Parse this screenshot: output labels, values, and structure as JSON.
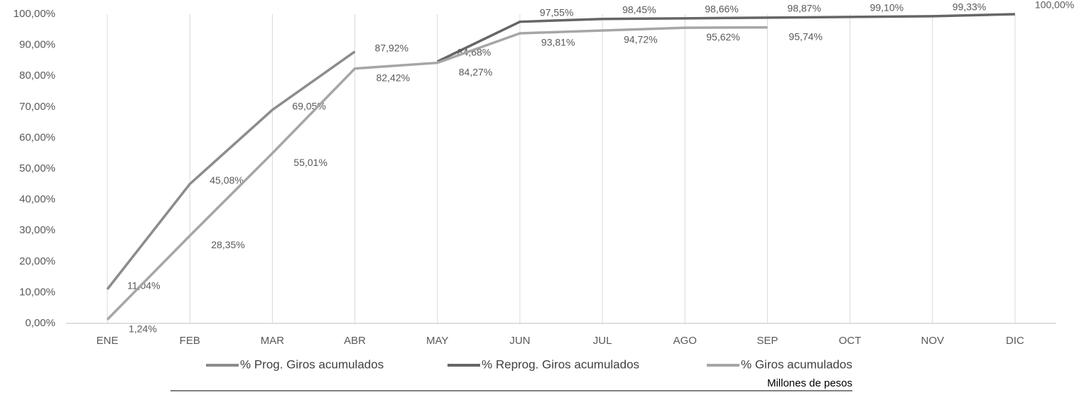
{
  "chart_data": {
    "type": "line",
    "categories": [
      "ENE",
      "FEB",
      "MAR",
      "ABR",
      "MAY",
      "JUN",
      "JUL",
      "AGO",
      "SEP",
      "OCT",
      "NOV",
      "DIC"
    ],
    "series": [
      {
        "name": "% Prog. Giros acumulados",
        "color": "#8c8c8c",
        "values": [
          11.04,
          45.08,
          69.05,
          87.92,
          null,
          null,
          null,
          null,
          null,
          null,
          null,
          null
        ],
        "value_labels": [
          "11,04%",
          "45,08%",
          "69,05%",
          "87,92%",
          null,
          null,
          null,
          null,
          null,
          null,
          null,
          null
        ]
      },
      {
        "name": "% Reprog. Giros acumulados",
        "color": "#666666",
        "values": [
          null,
          null,
          null,
          null,
          84.68,
          97.55,
          98.45,
          98.66,
          98.87,
          99.1,
          99.33,
          100
        ],
        "value_labels": [
          null,
          null,
          null,
          null,
          "84,68%",
          "97,55%",
          "98,45%",
          "98,66%",
          "98,87%",
          "99,10%",
          "99,33%",
          "100,00%"
        ]
      },
      {
        "name": "% Giros acumulados",
        "color": "#a6a6a6",
        "values": [
          1.24,
          28.35,
          55.01,
          82.42,
          84.27,
          93.81,
          94.72,
          95.62,
          95.74,
          null,
          null,
          null
        ],
        "value_labels": [
          "1,24%",
          "28,35%",
          "55,01%",
          "82,42%",
          "84,27%",
          "93,81%",
          "94,72%",
          "95,62%",
          "95,74%",
          null,
          null,
          null
        ]
      }
    ],
    "ylim": [
      0,
      100
    ],
    "yticks": [
      {
        "value": 0,
        "label": "0,00%"
      },
      {
        "value": 10,
        "label": "10,00%"
      },
      {
        "value": 20,
        "label": "20,00%"
      },
      {
        "value": 30,
        "label": "30,00%"
      },
      {
        "value": 40,
        "label": "40,00%"
      },
      {
        "value": 50,
        "label": "50,00%"
      },
      {
        "value": 60,
        "label": "60,00%"
      },
      {
        "value": 70,
        "label": "70,00%"
      },
      {
        "value": 80,
        "label": "80,00%"
      },
      {
        "value": 90,
        "label": "90,00%"
      },
      {
        "value": 100,
        "label": "100,00%"
      }
    ],
    "grid": "x",
    "legend": "bottom",
    "note": "Millones de pesos"
  }
}
